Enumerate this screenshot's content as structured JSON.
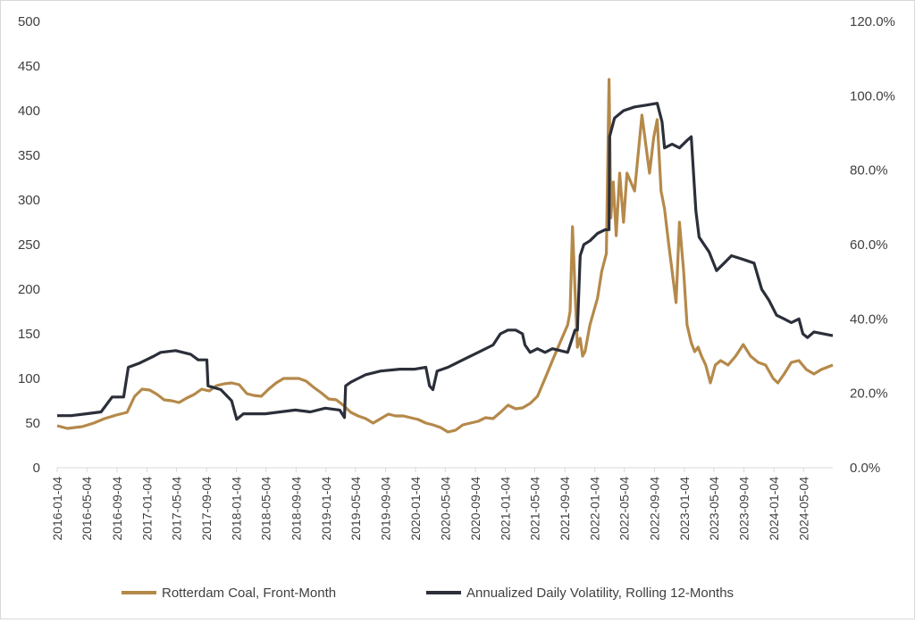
{
  "chart_data": {
    "type": "line",
    "title": "",
    "xlabel": "",
    "ylabel": "",
    "y_left": {
      "ylim": [
        0,
        500
      ],
      "ticks": [
        "0",
        "50",
        "100",
        "150",
        "200",
        "250",
        "300",
        "350",
        "400",
        "450",
        "500"
      ]
    },
    "y_right": {
      "ylim": [
        0,
        1.2
      ],
      "ticks": [
        "0.0%",
        "20.0%",
        "40.0%",
        "60.0%",
        "80.0%",
        "100.0%",
        "120.0%"
      ]
    },
    "x_ticks": [
      "2016-01-04",
      "2016-05-04",
      "2016-09-04",
      "2017-01-04",
      "2017-05-04",
      "2017-09-04",
      "2018-01-04",
      "2018-05-04",
      "2018-09-04",
      "2019-01-04",
      "2019-05-04",
      "2019-09-04",
      "2020-01-04",
      "2020-05-04",
      "2020-09-04",
      "2021-01-04",
      "2021-05-04",
      "2021-09-04",
      "2022-01-04",
      "2022-05-04",
      "2022-09-04",
      "2023-01-04",
      "2023-05-04",
      "2023-09-04",
      "2024-01-04",
      "2024-05-04"
    ],
    "x_range": [
      "2016-01-04",
      "2024-08-31"
    ],
    "grid": false,
    "legend_position": "bottom",
    "series": [
      {
        "name": "Rotterdam Coal, Front-Month",
        "color": "#b5894a",
        "axis": "left",
        "points": [
          [
            "2016-01-04",
            47
          ],
          [
            "2016-02-15",
            44
          ],
          [
            "2016-03-15",
            45
          ],
          [
            "2016-04-15",
            46
          ],
          [
            "2016-06-01",
            50
          ],
          [
            "2016-07-15",
            55
          ],
          [
            "2016-09-01",
            59
          ],
          [
            "2016-10-15",
            62
          ],
          [
            "2016-11-15",
            80
          ],
          [
            "2016-12-15",
            88
          ],
          [
            "2017-01-15",
            87
          ],
          [
            "2017-02-15",
            82
          ],
          [
            "2017-03-15",
            76
          ],
          [
            "2017-04-15",
            75
          ],
          [
            "2017-05-15",
            73
          ],
          [
            "2017-06-15",
            78
          ],
          [
            "2017-07-15",
            82
          ],
          [
            "2017-08-15",
            88
          ],
          [
            "2017-09-15",
            86
          ],
          [
            "2017-10-15",
            92
          ],
          [
            "2017-11-15",
            94
          ],
          [
            "2017-12-15",
            95
          ],
          [
            "2018-01-15",
            93
          ],
          [
            "2018-02-15",
            83
          ],
          [
            "2018-03-15",
            81
          ],
          [
            "2018-04-15",
            80
          ],
          [
            "2018-05-15",
            88
          ],
          [
            "2018-06-15",
            95
          ],
          [
            "2018-07-15",
            100
          ],
          [
            "2018-08-15",
            100
          ],
          [
            "2018-09-15",
            100
          ],
          [
            "2018-10-15",
            97
          ],
          [
            "2018-11-15",
            90
          ],
          [
            "2018-12-15",
            84
          ],
          [
            "2019-01-15",
            77
          ],
          [
            "2019-02-15",
            76
          ],
          [
            "2019-03-15",
            70
          ],
          [
            "2019-04-15",
            62
          ],
          [
            "2019-05-15",
            58
          ],
          [
            "2019-06-15",
            55
          ],
          [
            "2019-07-15",
            50
          ],
          [
            "2019-08-15",
            55
          ],
          [
            "2019-09-15",
            60
          ],
          [
            "2019-10-15",
            58
          ],
          [
            "2019-11-15",
            58
          ],
          [
            "2019-12-15",
            56
          ],
          [
            "2020-01-15",
            54
          ],
          [
            "2020-02-15",
            50
          ],
          [
            "2020-03-15",
            48
          ],
          [
            "2020-04-15",
            45
          ],
          [
            "2020-05-15",
            40
          ],
          [
            "2020-06-15",
            42
          ],
          [
            "2020-07-15",
            48
          ],
          [
            "2020-08-15",
            50
          ],
          [
            "2020-09-15",
            52
          ],
          [
            "2020-10-15",
            56
          ],
          [
            "2020-11-15",
            55
          ],
          [
            "2020-12-15",
            62
          ],
          [
            "2021-01-15",
            70
          ],
          [
            "2021-02-15",
            66
          ],
          [
            "2021-03-15",
            67
          ],
          [
            "2021-04-15",
            72
          ],
          [
            "2021-05-15",
            80
          ],
          [
            "2021-06-15",
            100
          ],
          [
            "2021-07-15",
            120
          ],
          [
            "2021-08-15",
            140
          ],
          [
            "2021-09-15",
            160
          ],
          [
            "2021-09-25",
            175
          ],
          [
            "2021-10-05",
            270
          ],
          [
            "2021-10-15",
            200
          ],
          [
            "2021-10-25",
            135
          ],
          [
            "2021-11-05",
            145
          ],
          [
            "2021-11-15",
            125
          ],
          [
            "2021-11-25",
            130
          ],
          [
            "2021-12-15",
            160
          ],
          [
            "2022-01-15",
            190
          ],
          [
            "2022-02-01",
            220
          ],
          [
            "2022-02-20",
            240
          ],
          [
            "2022-03-03",
            435
          ],
          [
            "2022-03-10",
            280
          ],
          [
            "2022-03-20",
            320
          ],
          [
            "2022-04-01",
            260
          ],
          [
            "2022-04-15",
            330
          ],
          [
            "2022-05-01",
            275
          ],
          [
            "2022-05-15",
            330
          ],
          [
            "2022-06-15",
            310
          ],
          [
            "2022-07-15",
            395
          ],
          [
            "2022-08-15",
            330
          ],
          [
            "2022-09-01",
            370
          ],
          [
            "2022-09-15",
            390
          ],
          [
            "2022-10-01",
            310
          ],
          [
            "2022-10-15",
            290
          ],
          [
            "2022-11-01",
            250
          ],
          [
            "2022-11-15",
            220
          ],
          [
            "2022-12-01",
            185
          ],
          [
            "2022-12-15",
            275
          ],
          [
            "2023-01-01",
            220
          ],
          [
            "2023-01-15",
            160
          ],
          [
            "2023-02-01",
            140
          ],
          [
            "2023-02-15",
            130
          ],
          [
            "2023-03-01",
            135
          ],
          [
            "2023-03-15",
            125
          ],
          [
            "2023-04-01",
            115
          ],
          [
            "2023-04-20",
            95
          ],
          [
            "2023-05-10",
            115
          ],
          [
            "2023-06-01",
            120
          ],
          [
            "2023-07-01",
            115
          ],
          [
            "2023-08-01",
            125
          ],
          [
            "2023-09-01",
            138
          ],
          [
            "2023-10-01",
            125
          ],
          [
            "2023-11-01",
            118
          ],
          [
            "2023-12-01",
            115
          ],
          [
            "2024-01-01",
            100
          ],
          [
            "2024-01-20",
            95
          ],
          [
            "2024-02-15",
            105
          ],
          [
            "2024-03-15",
            118
          ],
          [
            "2024-04-15",
            120
          ],
          [
            "2024-05-15",
            110
          ],
          [
            "2024-06-15",
            105
          ],
          [
            "2024-07-15",
            110
          ],
          [
            "2024-08-31",
            115
          ]
        ]
      },
      {
        "name": "Annualized Daily Volatility, Rolling 12-Months",
        "color": "#2b2f3a",
        "axis": "right",
        "points": [
          [
            "2016-01-04",
            0.14
          ],
          [
            "2016-03-01",
            0.14
          ],
          [
            "2016-05-01",
            0.145
          ],
          [
            "2016-07-01",
            0.15
          ],
          [
            "2016-08-15",
            0.19
          ],
          [
            "2016-10-01",
            0.19
          ],
          [
            "2016-10-20",
            0.27
          ],
          [
            "2016-12-01",
            0.28
          ],
          [
            "2017-01-01",
            0.29
          ],
          [
            "2017-02-01",
            0.3
          ],
          [
            "2017-03-01",
            0.31
          ],
          [
            "2017-05-01",
            0.315
          ],
          [
            "2017-07-01",
            0.305
          ],
          [
            "2017-08-01",
            0.29
          ],
          [
            "2017-09-05",
            0.29
          ],
          [
            "2017-09-10",
            0.22
          ],
          [
            "2017-11-01",
            0.21
          ],
          [
            "2017-12-15",
            0.18
          ],
          [
            "2018-01-05",
            0.13
          ],
          [
            "2018-02-01",
            0.145
          ],
          [
            "2018-05-01",
            0.145
          ],
          [
            "2018-07-01",
            0.15
          ],
          [
            "2018-09-01",
            0.155
          ],
          [
            "2018-11-01",
            0.15
          ],
          [
            "2019-01-01",
            0.16
          ],
          [
            "2019-03-01",
            0.155
          ],
          [
            "2019-03-20",
            0.135
          ],
          [
            "2019-03-25",
            0.22
          ],
          [
            "2019-04-15",
            0.23
          ],
          [
            "2019-05-15",
            0.24
          ],
          [
            "2019-06-15",
            0.25
          ],
          [
            "2019-08-15",
            0.26
          ],
          [
            "2019-11-01",
            0.265
          ],
          [
            "2020-01-01",
            0.265
          ],
          [
            "2020-02-15",
            0.27
          ],
          [
            "2020-03-01",
            0.22
          ],
          [
            "2020-03-15",
            0.21
          ],
          [
            "2020-04-01",
            0.26
          ],
          [
            "2020-05-15",
            0.27
          ],
          [
            "2020-07-15",
            0.29
          ],
          [
            "2020-09-15",
            0.31
          ],
          [
            "2020-11-15",
            0.33
          ],
          [
            "2020-12-15",
            0.36
          ],
          [
            "2021-01-15",
            0.37
          ],
          [
            "2021-02-15",
            0.37
          ],
          [
            "2021-03-15",
            0.36
          ],
          [
            "2021-03-25",
            0.33
          ],
          [
            "2021-04-15",
            0.31
          ],
          [
            "2021-05-15",
            0.32
          ],
          [
            "2021-06-15",
            0.31
          ],
          [
            "2021-07-15",
            0.32
          ],
          [
            "2021-09-15",
            0.31
          ],
          [
            "2021-10-15",
            0.37
          ],
          [
            "2021-10-25",
            0.37
          ],
          [
            "2021-11-05",
            0.57
          ],
          [
            "2021-11-20",
            0.6
          ],
          [
            "2021-12-15",
            0.61
          ],
          [
            "2022-01-15",
            0.63
          ],
          [
            "2022-02-15",
            0.64
          ],
          [
            "2022-03-03",
            0.64
          ],
          [
            "2022-03-05",
            0.89
          ],
          [
            "2022-03-25",
            0.94
          ],
          [
            "2022-05-01",
            0.96
          ],
          [
            "2022-06-15",
            0.97
          ],
          [
            "2022-08-01",
            0.975
          ],
          [
            "2022-09-15",
            0.98
          ],
          [
            "2022-10-05",
            0.93
          ],
          [
            "2022-10-15",
            0.86
          ],
          [
            "2022-11-15",
            0.87
          ],
          [
            "2022-12-15",
            0.86
          ],
          [
            "2023-01-15",
            0.88
          ],
          [
            "2023-02-01",
            0.89
          ],
          [
            "2023-02-20",
            0.69
          ],
          [
            "2023-03-05",
            0.62
          ],
          [
            "2023-04-15",
            0.58
          ],
          [
            "2023-05-15",
            0.53
          ],
          [
            "2023-06-15",
            0.55
          ],
          [
            "2023-07-15",
            0.57
          ],
          [
            "2023-09-01",
            0.56
          ],
          [
            "2023-10-15",
            0.55
          ],
          [
            "2023-11-15",
            0.48
          ],
          [
            "2023-12-15",
            0.45
          ],
          [
            "2024-01-15",
            0.41
          ],
          [
            "2024-02-15",
            0.4
          ],
          [
            "2024-03-15",
            0.39
          ],
          [
            "2024-04-15",
            0.4
          ],
          [
            "2024-05-01",
            0.36
          ],
          [
            "2024-05-20",
            0.35
          ],
          [
            "2024-06-15",
            0.365
          ],
          [
            "2024-08-31",
            0.355
          ]
        ]
      }
    ]
  }
}
